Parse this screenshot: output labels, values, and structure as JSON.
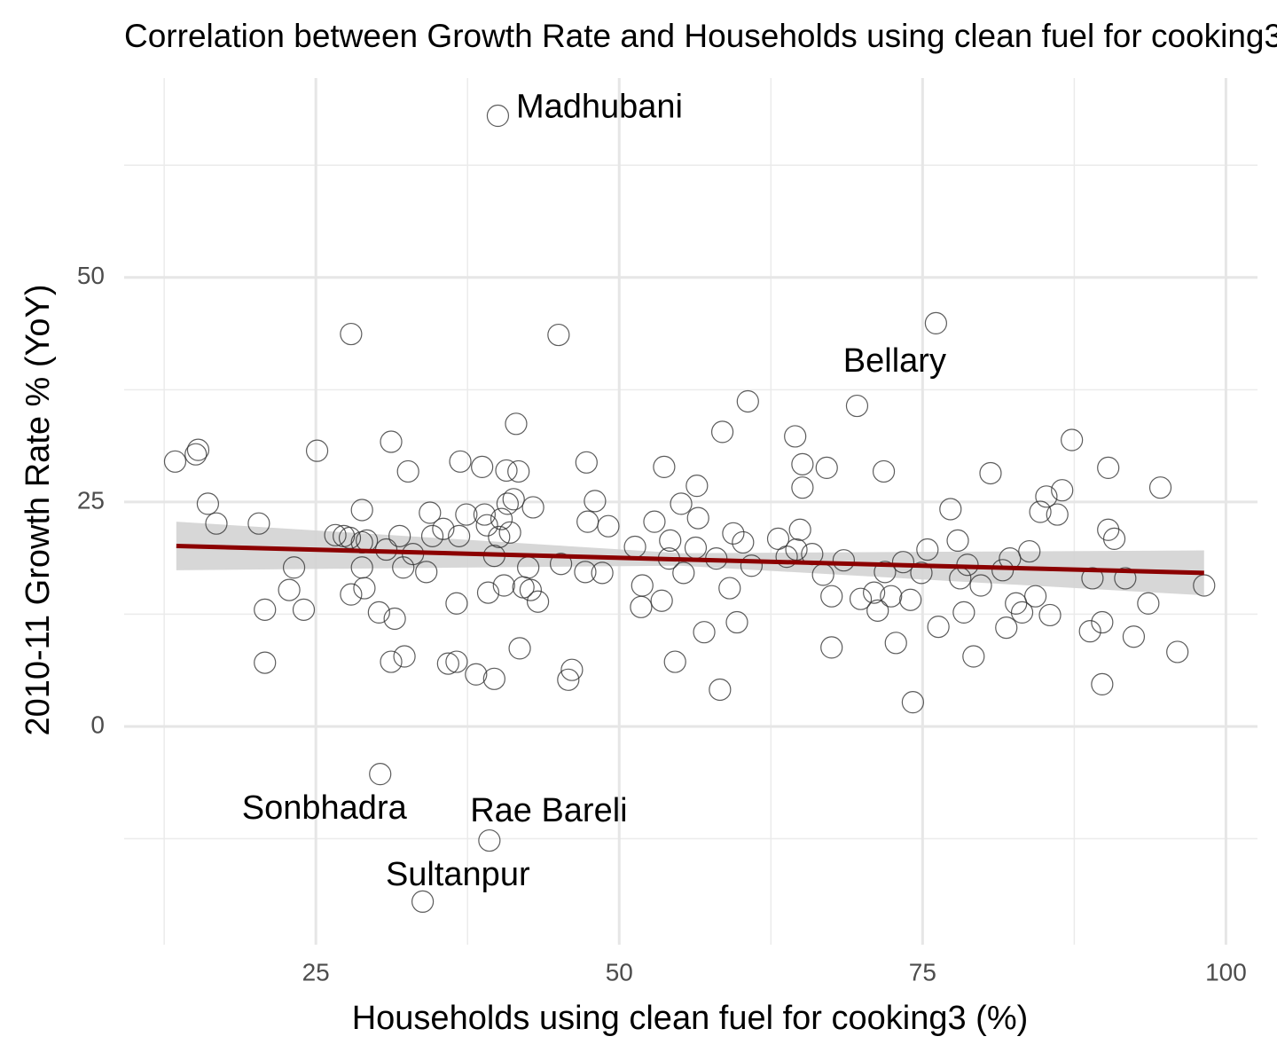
{
  "chart_data": {
    "type": "scatter",
    "title": "Correlation between Growth Rate and Households using clean fuel for cooking3",
    "xlabel": "Households using clean fuel for cooking3 (%)",
    "ylabel": "2010-11 Growth Rate % (YoY)",
    "xlim": [
      9.2,
      102.6
    ],
    "ylim": [
      -24.3,
      72.2
    ],
    "xticks": [
      25,
      50,
      75,
      100
    ],
    "yticks": [
      0,
      25,
      50
    ],
    "xminor": [
      12.5,
      37.5,
      62.5,
      87.5
    ],
    "yminor": [
      -12.5,
      12.5,
      37.5,
      62.5
    ],
    "grid": true,
    "color": "#333333",
    "x": [
      13.4,
      15.1,
      15.3,
      16.1,
      16.8,
      20.3,
      20.8,
      20.8,
      22.8,
      23.2,
      24.0,
      25.1,
      26.6,
      27.3,
      27.8,
      27.9,
      27.9,
      28.8,
      28.8,
      28.8,
      29.0,
      29.2,
      30.2,
      30.3,
      30.8,
      31.2,
      31.5,
      31.2,
      31.9,
      32.2,
      32.3,
      32.6,
      33.0,
      33.8,
      34.1,
      34.4,
      34.6,
      35.5,
      35.9,
      36.6,
      36.6,
      36.8,
      36.9,
      37.4,
      38.2,
      38.7,
      38.9,
      39.1,
      39.2,
      39.3,
      39.7,
      39.7,
      40.0,
      40.1,
      40.3,
      40.5,
      40.7,
      40.8,
      41.0,
      41.3,
      41.5,
      41.7,
      41.8,
      42.1,
      42.5,
      42.7,
      42.9,
      43.3,
      45.0,
      45.2,
      45.8,
      46.1,
      47.2,
      47.3,
      47.4,
      48.0,
      48.6,
      49.1,
      51.3,
      51.9,
      51.8,
      52.9,
      53.5,
      53.7,
      54.2,
      54.1,
      54.6,
      55.1,
      55.3,
      56.3,
      56.4,
      56.5,
      57.0,
      58.0,
      58.3,
      58.5,
      59.1,
      59.4,
      59.7,
      60.2,
      60.6,
      60.9,
      63.1,
      63.8,
      64.5,
      64.6,
      64.9,
      65.1,
      65.1,
      65.9,
      66.8,
      67.1,
      67.5,
      67.5,
      68.5,
      69.6,
      69.9,
      71.0,
      71.3,
      71.8,
      71.9,
      72.4,
      72.8,
      73.4,
      74.0,
      74.2,
      74.9,
      75.4,
      76.1,
      76.3,
      77.3,
      77.9,
      78.1,
      78.4,
      78.7,
      79.2,
      79.8,
      80.6,
      81.6,
      81.9,
      82.2,
      82.7,
      83.2,
      83.8,
      84.3,
      84.7,
      85.2,
      85.5,
      86.1,
      86.5,
      87.3,
      88.8,
      89.0,
      89.8,
      89.8,
      90.3,
      90.3,
      90.8,
      91.7,
      92.4,
      93.6,
      94.6,
      96.0,
      98.2
    ],
    "values": [
      29.5,
      30.3,
      30.8,
      24.8,
      22.6,
      22.6,
      13.0,
      7.1,
      15.2,
      17.7,
      13.0,
      30.7,
      21.3,
      21.2,
      21.0,
      43.7,
      14.7,
      24.1,
      20.5,
      17.7,
      15.4,
      20.7,
      12.7,
      -5.3,
      19.7,
      31.7,
      12.0,
      7.2,
      21.2,
      17.7,
      7.8,
      28.4,
      19.2,
      -19.5,
      17.2,
      23.8,
      21.2,
      22.0,
      7.0,
      7.2,
      13.7,
      21.2,
      29.5,
      23.6,
      5.8,
      28.9,
      23.6,
      22.4,
      14.9,
      -12.7,
      5.3,
      19.0,
      68.0,
      21.1,
      23.1,
      15.7,
      28.5,
      24.8,
      21.6,
      25.3,
      33.7,
      28.4,
      8.7,
      15.5,
      17.7,
      15.2,
      24.4,
      13.9,
      43.6,
      18.1,
      5.2,
      6.3,
      17.2,
      29.4,
      22.8,
      25.1,
      17.1,
      22.3,
      20.0,
      15.7,
      13.3,
      22.8,
      14.0,
      28.9,
      20.7,
      18.7,
      7.2,
      24.8,
      17.1,
      19.9,
      26.8,
      23.2,
      10.5,
      18.7,
      4.1,
      32.8,
      15.4,
      21.5,
      11.6,
      20.5,
      36.2,
      17.9,
      20.9,
      18.9,
      32.3,
      19.7,
      21.9,
      29.2,
      26.6,
      19.2,
      16.9,
      28.8,
      14.5,
      8.8,
      18.5,
      35.7,
      14.2,
      14.9,
      12.9,
      28.4,
      17.2,
      14.5,
      9.3,
      18.3,
      14.1,
      2.7,
      17.1,
      19.7,
      44.9,
      11.1,
      24.2,
      20.7,
      16.5,
      12.7,
      18.0,
      7.8,
      15.7,
      28.2,
      17.4,
      11.0,
      18.7,
      13.7,
      12.7,
      19.5,
      14.5,
      23.9,
      25.6,
      12.4,
      23.6,
      26.3,
      31.9,
      10.6,
      16.5,
      4.7,
      11.6,
      28.8,
      21.9,
      20.9,
      16.5,
      10.0,
      13.7,
      26.6,
      8.3,
      15.7
    ],
    "trend": {
      "color": "#8b0000",
      "band_color": "#d3d3d3",
      "x": [
        13.5,
        55,
        98.2
      ],
      "values": [
        20.1,
        18.6,
        17.1
      ],
      "lower": [
        17.4,
        17.9,
        14.6
      ],
      "upper": [
        22.8,
        19.3,
        19.6
      ]
    },
    "annotations": [
      {
        "text": "Madhubani",
        "x": 41.5,
        "y": 68.8,
        "anchor": "start"
      },
      {
        "text": "Bellary",
        "x": 72.7,
        "y": 40.5,
        "anchor": "middle"
      },
      {
        "text": "Sonbhadra",
        "x": 25.7,
        "y": -9.3,
        "anchor": "middle"
      },
      {
        "text": "Rae Bareli",
        "x": 44.2,
        "y": -9.6,
        "anchor": "middle"
      },
      {
        "text": "Sultanpur",
        "x": 36.7,
        "y": -16.7,
        "anchor": "middle"
      }
    ]
  }
}
